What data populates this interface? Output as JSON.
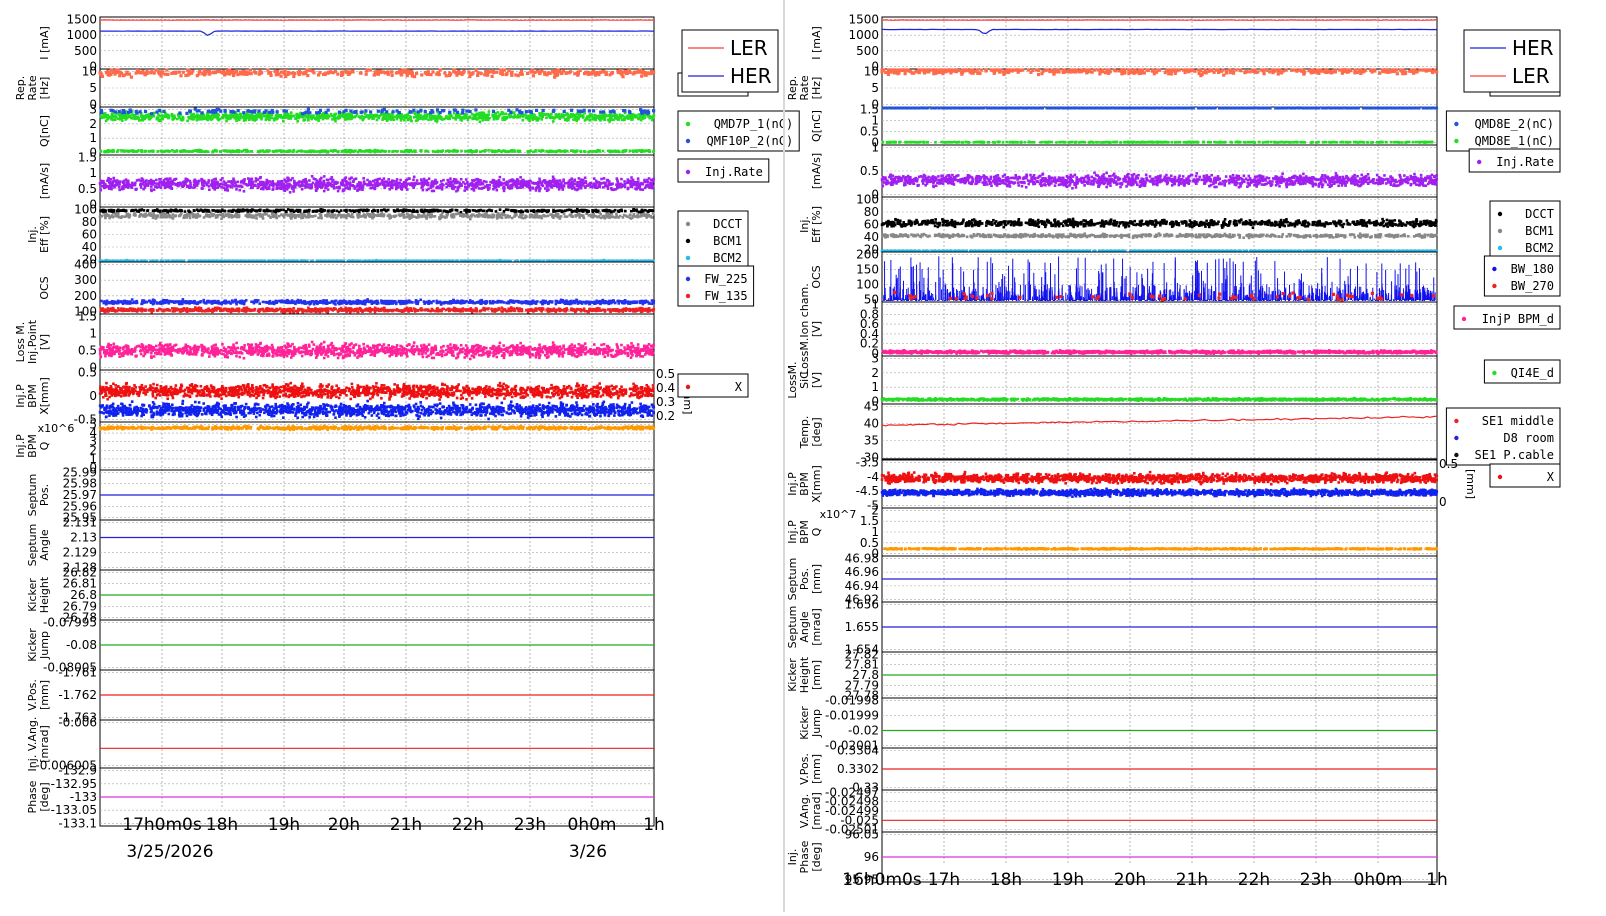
{
  "chart_data": [
    {
      "type": "line",
      "panel": "left",
      "x_ticks": [
        "17h0m0s",
        "18h",
        "19h",
        "20h",
        "21h",
        "22h",
        "23h",
        "0h0m",
        "1h"
      ],
      "date_labels": [
        "3/25/2026",
        "3/26"
      ],
      "legend_top": [
        "LER",
        "HER"
      ],
      "rows": [
        {
          "ylabel": [
            "I [mA]"
          ],
          "ticks": [
            "0",
            "500",
            "1000",
            "1500"
          ],
          "series": [
            {
              "color": "#ff3b3b",
              "kind": "line",
              "level": 1480,
              "noise": 10
            },
            {
              "color": "#2222dd",
              "kind": "line",
              "level": 1130,
              "noise": 5,
              "dip": {
                "at": 0.195,
                "to": 980
              }
            }
          ]
        },
        {
          "ylabel": [
            "Rep.",
            "Rate",
            "[Hz]"
          ],
          "ticks": [
            "0",
            "5",
            "10"
          ],
          "legend": [
            "Ave."
          ],
          "series": [
            {
              "color": "#ff6b4a",
              "kind": "dots",
              "level": 9.5,
              "noise": 1.5,
              "count": 420
            }
          ]
        },
        {
          "ylabel": [
            "Q[nC]"
          ],
          "ticks": [
            "0",
            "1",
            "2",
            "3"
          ],
          "legend": [
            "QMD7P_1(nC)",
            "QMF10P_2(nC)"
          ],
          "series": [
            {
              "color": "#22dd22",
              "kind": "band",
              "level": 2.5,
              "noise": 0.4,
              "count": 1200
            },
            {
              "color": "#2255dd",
              "kind": "dots",
              "level": 2.85,
              "noise": 0.2,
              "count": 160
            },
            {
              "color": "#22dd22",
              "kind": "band",
              "level": 0.1,
              "noise": 0.1,
              "count": 500
            }
          ]
        },
        {
          "ylabel": [
            "[mA/s]"
          ],
          "ticks": [
            "0",
            "0.5",
            "1",
            "1.5"
          ],
          "legend": [
            "Inj.Rate"
          ],
          "series": [
            {
              "color": "#a020f0",
              "kind": "band",
              "level": 0.65,
              "noise": 0.28,
              "count": 1400
            }
          ]
        },
        {
          "ylabel": [
            "Inj.",
            "Eff [%]"
          ],
          "ticks": [
            "20",
            "40",
            "60",
            "80",
            "100"
          ],
          "legend": [
            "DCCT",
            "BCM1",
            "BCM2"
          ],
          "series": [
            {
              "color": "#888888",
              "kind": "band",
              "level": 90,
              "noise": 6,
              "count": 700
            },
            {
              "color": "#000000",
              "kind": "band",
              "level": 98,
              "noise": 3,
              "count": 500
            },
            {
              "color": "#22bbee",
              "kind": "band",
              "level": 12,
              "noise": 8,
              "count": 900
            }
          ]
        },
        {
          "ylabel": [
            "OCS"
          ],
          "ticks": [
            "100",
            "200",
            "300",
            "400"
          ],
          "legend": [
            "FW_225",
            "FW_135"
          ],
          "series": [
            {
              "color": "#2233ee",
              "kind": "band",
              "level": 160,
              "noise": 18,
              "count": 900
            },
            {
              "color": "#ee2222",
              "kind": "band",
              "level": 110,
              "noise": 18,
              "count": 900
            }
          ]
        },
        {
          "ylabel": [
            "Loss M.",
            "Inj.Point",
            "[V]"
          ],
          "ticks": [
            "0",
            "0.5",
            "1",
            "1.5"
          ],
          "series": [
            {
              "color": "#ff2299",
              "kind": "band",
              "level": 0.5,
              "noise": 0.28,
              "count": 1500
            }
          ]
        },
        {
          "ylabel": [
            "Inj.P",
            "BPM",
            "X[mm]"
          ],
          "ticks": [
            "-0.5",
            "0",
            "0.5"
          ],
          "right_ticks": [
            "0.2",
            "0.3",
            "0.4",
            "0.5"
          ],
          "right_label": "Y[mm]",
          "legend": [
            "X"
          ],
          "series": [
            {
              "color": "#ee1111",
              "kind": "band",
              "level": 0.1,
              "noise": 0.2,
              "count": 1600
            },
            {
              "color": "#1122ee",
              "kind": "band",
              "level": -0.3,
              "noise": 0.2,
              "count": 1600
            }
          ]
        },
        {
          "ylabel": [
            "Inj.P",
            "BPM",
            "Q"
          ],
          "multiplier": "x10^6",
          "ticks": [
            "0",
            "1",
            "2",
            "3",
            "4",
            "5"
          ],
          "series": [
            {
              "color": "#ff9900",
              "kind": "band",
              "level": 4.6,
              "noise": 0.25,
              "count": 900
            }
          ]
        },
        {
          "ylabel": [
            "Septum",
            "Pos."
          ],
          "ticks": [
            "25.95",
            "25.96",
            "25.97",
            "25.98",
            "25.99"
          ],
          "series": [
            {
              "color": "#2222dd",
              "kind": "line",
              "level": 25.97,
              "noise": 0
            }
          ]
        },
        {
          "ylabel": [
            "Septum",
            "Angle"
          ],
          "ticks": [
            "2.128",
            "2.129",
            "2.13",
            "2.131"
          ],
          "series": [
            {
              "color": "#2222dd",
              "kind": "line",
              "level": 2.13,
              "noise": 0
            }
          ]
        },
        {
          "ylabel": [
            "Kicker",
            "Height"
          ],
          "ticks": [
            "26.78",
            "26.79",
            "26.8",
            "26.81",
            "26.82"
          ],
          "series": [
            {
              "color": "#22aa22",
              "kind": "line",
              "level": 26.8,
              "noise": 0
            }
          ]
        },
        {
          "ylabel": [
            "Kicker",
            "Jump"
          ],
          "ticks": [
            "-0.08005",
            "-0.08",
            "-0.07995"
          ],
          "series": [
            {
              "color": "#22aa22",
              "kind": "line",
              "level": -0.08,
              "noise": 0
            }
          ]
        },
        {
          "ylabel": [
            "V.Pos.",
            "[mm]"
          ],
          "ticks": [
            "-1.763",
            "-1.762",
            "-1.761"
          ],
          "series": [
            {
              "color": "#ee2222",
              "kind": "line",
              "level": -1.762,
              "noise": 0
            }
          ]
        },
        {
          "ylabel": [
            "Inj. V.Ang.",
            "[mrad]"
          ],
          "ticks": [
            "-0.006005",
            "-0.006"
          ],
          "series": [
            {
              "color": "#ee2222",
              "kind": "line",
              "level": -0.006003,
              "noise": 0
            }
          ]
        },
        {
          "ylabel": [
            "Phase",
            "[deg]"
          ],
          "ticks": [
            "-133.1",
            "-133.05",
            "-133",
            "-132.95",
            "-132.9"
          ],
          "series": [
            {
              "color": "#dd33dd",
              "kind": "line",
              "level": -133.0,
              "noise": 0
            }
          ]
        }
      ]
    },
    {
      "type": "line",
      "panel": "right",
      "x_ticks": [
        "16h0m0s",
        "17h",
        "18h",
        "19h",
        "20h",
        "21h",
        "22h",
        "23h",
        "0h0m",
        "1h"
      ],
      "date_labels": [],
      "legend_top": [
        "HER",
        "LER"
      ],
      "rows": [
        {
          "ylabel": [
            "I [mA]"
          ],
          "ticks": [
            "0",
            "500",
            "1000",
            "1500"
          ],
          "series": [
            {
              "color": "#ff3b3b",
              "kind": "line",
              "level": 1480,
              "noise": 10
            },
            {
              "color": "#2222dd",
              "kind": "line",
              "level": 1180,
              "noise": 6,
              "dip": {
                "at": 0.185,
                "to": 1020
              }
            }
          ]
        },
        {
          "ylabel": [
            "Rep.",
            "Rate",
            "[Hz]"
          ],
          "ticks": [
            "0",
            "5",
            "10"
          ],
          "legend": [
            "Ave."
          ],
          "series": [
            {
              "color": "#ff6b4a",
              "kind": "dots",
              "level": 10.2,
              "noise": 1.6,
              "count": 500
            }
          ]
        },
        {
          "ylabel": [
            "Q[nC]"
          ],
          "ticks": [
            "0",
            "0.5",
            "1",
            "1.5"
          ],
          "legend": [
            "QMD8E_2(nC)",
            "QMD8E_1(nC)"
          ],
          "series": [
            {
              "color": "#2255dd",
              "kind": "band",
              "level": 1.7,
              "noise": 0.08,
              "count": 900
            },
            {
              "color": "#22dd22",
              "kind": "band",
              "level": 0.02,
              "noise": 0.02,
              "count": 400
            }
          ]
        },
        {
          "ylabel": [
            "[mA/s]"
          ],
          "ticks": [
            "0",
            "0.5",
            "1"
          ],
          "legend": [
            "Inj.Rate"
          ],
          "series": [
            {
              "color": "#a020f0",
              "kind": "band",
              "level": 0.3,
              "noise": 0.18,
              "count": 1400
            }
          ]
        },
        {
          "ylabel": [
            "Inj.",
            "Eff [%]"
          ],
          "ticks": [
            "20",
            "40",
            "60",
            "80",
            "100"
          ],
          "legend": [
            "DCCT",
            "BCM1",
            "BCM2"
          ],
          "series": [
            {
              "color": "#000000",
              "kind": "band",
              "level": 62,
              "noise": 8,
              "count": 900
            },
            {
              "color": "#888888",
              "kind": "band",
              "level": 42,
              "noise": 4,
              "count": 600
            },
            {
              "color": "#22bbee",
              "kind": "band",
              "level": 12,
              "noise": 6,
              "count": 900
            }
          ]
        },
        {
          "ylabel": [
            "OCS"
          ],
          "ticks": [
            "50",
            "100",
            "150",
            "200"
          ],
          "legend": [
            "BW_180",
            "BW_270"
          ],
          "series": [
            {
              "color": "#1111ee",
              "kind": "spikes",
              "level": 55,
              "noise": 70,
              "count": 1500
            },
            {
              "color": "#ee2222",
              "kind": "dots",
              "level": 60,
              "noise": 20,
              "count": 60
            }
          ]
        },
        {
          "ylabel": [
            "LossM.Ion cham.",
            "[V]"
          ],
          "ticks": [
            "0",
            "0.2",
            "0.4",
            "0.6",
            "0.8",
            "1"
          ],
          "legend": [
            "InjP BPM_d"
          ],
          "series": [
            {
              "color": "#ff2299",
              "kind": "band",
              "level": 0.03,
              "noise": 0.04,
              "count": 1200
            }
          ]
        },
        {
          "ylabel": [
            "LossM.",
            "SiC",
            "[V]"
          ],
          "ticks": [
            "0",
            "1",
            "2",
            "3"
          ],
          "legend": [
            "QI4E_d"
          ],
          "series": [
            {
              "color": "#22dd22",
              "kind": "band",
              "level": 0.15,
              "noise": 0.1,
              "count": 900
            }
          ]
        },
        {
          "ylabel": [
            "Temp.",
            "[deg]"
          ],
          "ticks": [
            "30",
            "35",
            "40",
            "45"
          ],
          "legend": [
            "SE1 middle",
            "D8 room",
            "SE1 P.cable"
          ],
          "series": [
            {
              "color": "#ee2222",
              "kind": "line",
              "level": 42,
              "noise": 0.4,
              "ramp": -2.5
            },
            {
              "color": "#2222dd",
              "kind": "line",
              "level": 29,
              "noise": 0.3
            },
            {
              "color": "#111111",
              "kind": "line",
              "level": 28.2,
              "noise": 0.1
            }
          ]
        },
        {
          "ylabel": [
            "Inj.P",
            "BPM",
            "X[mm]"
          ],
          "ticks": [
            "-5",
            "-4.5",
            "-4",
            "-3.5"
          ],
          "right_ticks": [
            "0",
            "0.5"
          ],
          "right_label": "[mm]",
          "legend": [
            "X"
          ],
          "series": [
            {
              "color": "#ee1111",
              "kind": "band",
              "level": -4.05,
              "noise": 0.22,
              "count": 1600
            },
            {
              "color": "#1122ee",
              "kind": "band",
              "level": -4.55,
              "noise": 0.15,
              "count": 1600
            }
          ]
        },
        {
          "ylabel": [
            "Inj.P",
            "BPM",
            "Q"
          ],
          "multiplier": "x10^7",
          "ticks": [
            "0",
            "0.5",
            "1",
            "1.5",
            "2"
          ],
          "series": [
            {
              "color": "#ff9900",
              "kind": "band",
              "level": 0.22,
              "noise": 0.04,
              "count": 700
            }
          ]
        },
        {
          "ylabel": [
            "Septum",
            "Pos.",
            "[mm]"
          ],
          "ticks": [
            "46.92",
            "46.94",
            "46.96",
            "46.98"
          ],
          "series": [
            {
              "color": "#2222dd",
              "kind": "line",
              "level": 46.95,
              "noise": 0
            }
          ]
        },
        {
          "ylabel": [
            "Septum",
            "Angle",
            "[mrad]"
          ],
          "ticks": [
            "1.654",
            "1.655",
            "1.656"
          ],
          "series": [
            {
              "color": "#2222dd",
              "kind": "line",
              "level": 1.655,
              "noise": 0
            }
          ]
        },
        {
          "ylabel": [
            "Kicker",
            "Height",
            "[mm]"
          ],
          "ticks": [
            "27.78",
            "27.79",
            "27.8",
            "27.81",
            "27.82"
          ],
          "series": [
            {
              "color": "#22aa22",
              "kind": "line",
              "level": 27.8,
              "noise": 0
            }
          ]
        },
        {
          "ylabel": [
            "Kicker",
            "Jump"
          ],
          "ticks": [
            "-0.02001",
            "-0.02",
            "-0.01999",
            "-0.01998"
          ],
          "series": [
            {
              "color": "#22aa22",
              "kind": "line",
              "level": -0.02,
              "noise": 0
            }
          ]
        },
        {
          "ylabel": [
            "V.Pos.",
            "[mm]"
          ],
          "ticks": [
            "0.33",
            "0.3302",
            "0.3304"
          ],
          "series": [
            {
              "color": "#ee2222",
              "kind": "line",
              "level": 0.3302,
              "noise": 0
            }
          ]
        },
        {
          "ylabel": [
            "V.Ang.",
            "[mrad]"
          ],
          "ticks": [
            "-0.02501",
            "-0.025",
            "-0.02499",
            "-0.02498",
            "-0.02497"
          ],
          "series": [
            {
              "color": "#ee2222",
              "kind": "line",
              "level": -0.025,
              "noise": 0
            }
          ]
        },
        {
          "ylabel": [
            "Inj.",
            "Phase",
            "[deg]"
          ],
          "ticks": [
            "95.95",
            "96",
            "96.05"
          ],
          "series": [
            {
              "color": "#dd33dd",
              "kind": "line",
              "level": 96.0,
              "noise": 0
            }
          ]
        }
      ]
    }
  ]
}
